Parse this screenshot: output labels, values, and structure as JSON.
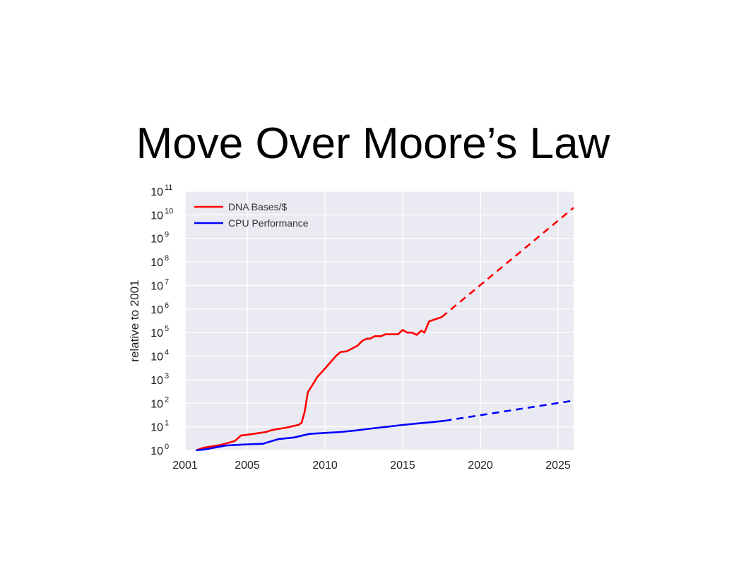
{
  "slide": {
    "title": "Move Over Moore’s Law"
  },
  "chart_data": {
    "type": "line",
    "title": "",
    "xlabel": "",
    "ylabel": "relative to 2001",
    "yscale": "log",
    "xlim": [
      2001,
      2026
    ],
    "ylim": [
      1,
      100000000000
    ],
    "grid": true,
    "background": "#eaeaf2",
    "legend_position": "top-left",
    "x_ticks": [
      2001,
      2005,
      2010,
      2015,
      2020,
      2025
    ],
    "x_tick_labels": [
      "2001",
      "2005",
      "2010",
      "2015",
      "2020",
      "2025"
    ],
    "y_ticks": [
      {
        "value": 1,
        "base": "10",
        "exp": "0"
      },
      {
        "value": 10,
        "base": "10",
        "exp": "1"
      },
      {
        "value": 100,
        "base": "10",
        "exp": "2"
      },
      {
        "value": 1000,
        "base": "10",
        "exp": "3"
      },
      {
        "value": 10000,
        "base": "10",
        "exp": "4"
      },
      {
        "value": 100000,
        "base": "10",
        "exp": "5"
      },
      {
        "value": 1000000,
        "base": "10",
        "exp": "6"
      },
      {
        "value": 10000000,
        "base": "10",
        "exp": "7"
      },
      {
        "value": 100000000,
        "base": "10",
        "exp": "8"
      },
      {
        "value": 1000000000,
        "base": "10",
        "exp": "9"
      },
      {
        "value": 10000000000,
        "base": "10",
        "exp": "10"
      },
      {
        "value": 100000000000,
        "base": "10",
        "exp": "11"
      }
    ],
    "series": [
      {
        "name": "DNA Bases/$",
        "color": "#ff0000",
        "points": [
          [
            2001.7,
            1
          ],
          [
            2002.2,
            1.3
          ],
          [
            2002.8,
            1.5
          ],
          [
            2003.3,
            1.7
          ],
          [
            2003.8,
            2.1
          ],
          [
            2004.2,
            2.5
          ],
          [
            2004.6,
            4.3
          ],
          [
            2005.0,
            4.6
          ],
          [
            2005.4,
            5.0
          ],
          [
            2005.8,
            5.5
          ],
          [
            2006.2,
            6.0
          ],
          [
            2006.5,
            7.0
          ],
          [
            2006.9,
            8.0
          ],
          [
            2007.2,
            8.5
          ],
          [
            2007.6,
            9.5
          ],
          [
            2008.0,
            11
          ],
          [
            2008.3,
            12
          ],
          [
            2008.5,
            15
          ],
          [
            2008.7,
            45
          ],
          [
            2008.9,
            300
          ],
          [
            2009.2,
            600
          ],
          [
            2009.5,
            1300
          ],
          [
            2009.9,
            2500
          ],
          [
            2010.3,
            5000
          ],
          [
            2010.7,
            10000
          ],
          [
            2011.0,
            15000
          ],
          [
            2011.4,
            16000
          ],
          [
            2011.8,
            22000
          ],
          [
            2012.1,
            28000
          ],
          [
            2012.4,
            45000
          ],
          [
            2012.7,
            55000
          ],
          [
            2012.9,
            55000
          ],
          [
            2013.2,
            70000
          ],
          [
            2013.6,
            70000
          ],
          [
            2013.9,
            85000
          ],
          [
            2014.4,
            85000
          ],
          [
            2014.7,
            85000
          ],
          [
            2015.0,
            130000
          ],
          [
            2015.3,
            100000
          ],
          [
            2015.6,
            100000
          ],
          [
            2015.9,
            80000
          ],
          [
            2016.2,
            120000
          ],
          [
            2016.4,
            100000
          ],
          [
            2016.7,
            300000
          ],
          [
            2017.0,
            350000
          ],
          [
            2017.5,
            450000
          ]
        ]
      },
      {
        "name": "CPU Performance",
        "color": "#0000ff",
        "points": [
          [
            2001.7,
            1
          ],
          [
            2002.3,
            1.1
          ],
          [
            2003.0,
            1.35
          ],
          [
            2003.6,
            1.6
          ],
          [
            2004.3,
            1.7
          ],
          [
            2005.0,
            1.8
          ],
          [
            2006.0,
            1.9
          ],
          [
            2007.0,
            3.0
          ],
          [
            2008.0,
            3.5
          ],
          [
            2009.0,
            5.0
          ],
          [
            2010.0,
            5.5
          ],
          [
            2011.0,
            6.0
          ],
          [
            2012.0,
            7.0
          ],
          [
            2013.0,
            8.5
          ],
          [
            2014.0,
            10
          ],
          [
            2015.0,
            12
          ],
          [
            2016.0,
            14
          ],
          [
            2017.0,
            16
          ],
          [
            2017.7,
            18
          ]
        ]
      }
    ],
    "projections": [
      {
        "series": "DNA Bases/$",
        "color": "#ff0000",
        "points": [
          [
            2017.5,
            450000
          ],
          [
            2026,
            20000000000
          ]
        ]
      },
      {
        "series": "CPU Performance",
        "color": "#0000ff",
        "points": [
          [
            2017.7,
            18
          ],
          [
            2026,
            130
          ]
        ]
      }
    ]
  }
}
